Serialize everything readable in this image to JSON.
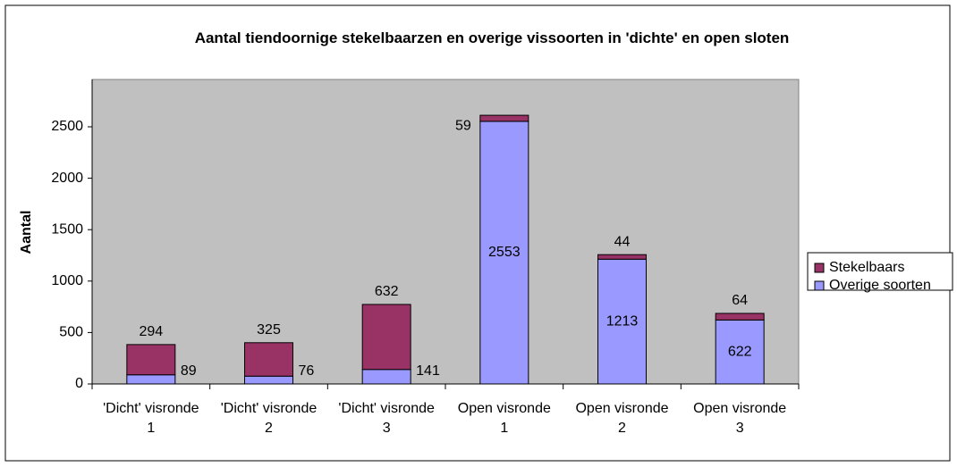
{
  "chart_data": {
    "type": "stacked_bar",
    "title": "Aantal tiendoornige stekelbaarzen en overige vissoorten in 'dichte' en open sloten",
    "y_label": "Aantal",
    "categories": [
      "'Dicht' visronde 1",
      "'Dicht' visronde 2",
      "'Dicht' visronde 3",
      "Open visronde 1",
      "Open visronde 2",
      "Open visronde 3"
    ],
    "series": [
      {
        "name": "Overige soorten",
        "color": "#9999ff",
        "values": [
          89,
          76,
          141,
          2553,
          1213,
          622
        ]
      },
      {
        "name": "Stekelbaars",
        "color": "#993366",
        "values": [
          294,
          325,
          632,
          59,
          44,
          64
        ]
      }
    ],
    "ylim": [
      0,
      2960
    ],
    "yticks": [
      0,
      500,
      1000,
      1500,
      2000,
      2500
    ],
    "legend": "right"
  }
}
